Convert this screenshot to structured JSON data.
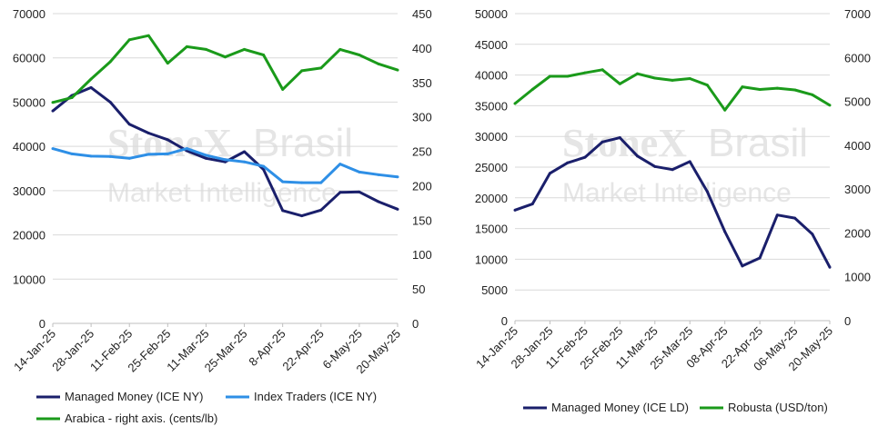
{
  "watermark": {
    "brand": "StoneX",
    "brand_suffix": "Brasil",
    "subtitle": "Market Intelligence"
  },
  "colors": {
    "managed_ny": "#1a1f6b",
    "index": "#2e8fe6",
    "arabica": "#1a9a1a",
    "managed_ld": "#1a1f6b",
    "robusta": "#1a9a1a",
    "grid": "#d9d9d9"
  },
  "chart_data": [
    {
      "type": "line",
      "categories": [
        "14-Jan-25",
        "21-Jan-25",
        "28-Jan-25",
        "4-Feb-25",
        "11-Feb-25",
        "18-Feb-25",
        "25-Feb-25",
        "4-Mar-25",
        "11-Mar-25",
        "18-Mar-25",
        "25-Mar-25",
        "1-Apr-25",
        "8-Apr-25",
        "15-Apr-25",
        "22-Apr-25",
        "29-Apr-25",
        "6-May-25",
        "13-May-25",
        "20-May-25"
      ],
      "x_tick_labels": [
        "14-Jan-25",
        "28-Jan-25",
        "11-Feb-25",
        "25-Feb-25",
        "11-Mar-25",
        "25-Mar-25",
        "8-Apr-25",
        "22-Apr-25",
        "6-May-25",
        "20-May-25"
      ],
      "y_ticks_left": [
        "0",
        "10000",
        "20000",
        "30000",
        "40000",
        "50000",
        "60000",
        "70000"
      ],
      "y_ticks_right": [
        "0",
        "50",
        "100",
        "150",
        "200",
        "250",
        "300",
        "350",
        "400",
        "450"
      ],
      "ylim_left": [
        0,
        70000
      ],
      "ylim_right": [
        0,
        450
      ],
      "grid": "horizontal",
      "series": [
        {
          "name": "Managed Money (ICE NY)",
          "axis": "left",
          "color": "#1a1f6b",
          "values": [
            48000,
            51500,
            53300,
            50000,
            45000,
            43000,
            41500,
            39000,
            37300,
            36500,
            38800,
            34800,
            25500,
            24300,
            25600,
            29600,
            29700,
            27500,
            25800
          ]
        },
        {
          "name": "Index Traders (ICE NY)",
          "axis": "left",
          "color": "#2e8fe6",
          "values": [
            39500,
            38300,
            37800,
            37700,
            37300,
            38200,
            38300,
            39500,
            38000,
            37000,
            36500,
            35500,
            32000,
            31800,
            31800,
            36000,
            34200,
            33600,
            33100
          ]
        },
        {
          "name": "Arabica - right axis. (cents/lb)",
          "axis": "right",
          "color": "#1a9a1a",
          "values": [
            321,
            328,
            355,
            380,
            412,
            418,
            378,
            402,
            398,
            387,
            398,
            390,
            340,
            367,
            371,
            398,
            390,
            377,
            368
          ]
        }
      ],
      "legend": {
        "placement": "bottom",
        "items": [
          "Managed Money (ICE NY)",
          "Index Traders (ICE NY)",
          "Arabica - right axis. (cents/lb)"
        ]
      }
    },
    {
      "type": "line",
      "categories": [
        "14-Jan-25",
        "21-Jan-25",
        "28-Jan-25",
        "4-Feb-25",
        "11-Feb-25",
        "18-Feb-25",
        "25-Feb-25",
        "4-Mar-25",
        "11-Mar-25",
        "18-Mar-25",
        "25-Mar-25",
        "1-Apr-25",
        "08-Apr-25",
        "15-Apr-25",
        "22-Apr-25",
        "29-Apr-25",
        "06-May-25",
        "13-May-25",
        "20-May-25"
      ],
      "x_tick_labels": [
        "14-Jan-25",
        "28-Jan-25",
        "11-Feb-25",
        "25-Feb-25",
        "11-Mar-25",
        "25-Mar-25",
        "08-Apr-25",
        "22-Apr-25",
        "06-May-25",
        "20-May-25"
      ],
      "y_ticks_left": [
        "0",
        "5000",
        "10000",
        "15000",
        "20000",
        "25000",
        "30000",
        "35000",
        "40000",
        "45000",
        "50000"
      ],
      "y_ticks_right": [
        "0",
        "1000",
        "2000",
        "3000",
        "4000",
        "5000",
        "6000",
        "7000"
      ],
      "ylim_left": [
        0,
        50000
      ],
      "ylim_right": [
        0,
        7000
      ],
      "grid": "horizontal",
      "series": [
        {
          "name": "Managed Money (ICE LD)",
          "axis": "left",
          "color": "#1a1f6b",
          "values": [
            18000,
            19000,
            24000,
            25700,
            26600,
            29100,
            29800,
            26800,
            25100,
            24600,
            25900,
            21000,
            14500,
            8900,
            10200,
            17200,
            16700,
            14100,
            8700
          ]
        },
        {
          "name": "Robusta (USD/ton)",
          "axis": "right",
          "color": "#1a9a1a",
          "values": [
            4950,
            5270,
            5570,
            5570,
            5650,
            5720,
            5400,
            5630,
            5530,
            5480,
            5520,
            5370,
            4800,
            5330,
            5270,
            5300,
            5260,
            5150,
            4910
          ]
        }
      ],
      "legend": {
        "placement": "bottom",
        "items": [
          "Managed Money (ICE LD)",
          "Robusta (USD/ton)"
        ]
      }
    }
  ]
}
